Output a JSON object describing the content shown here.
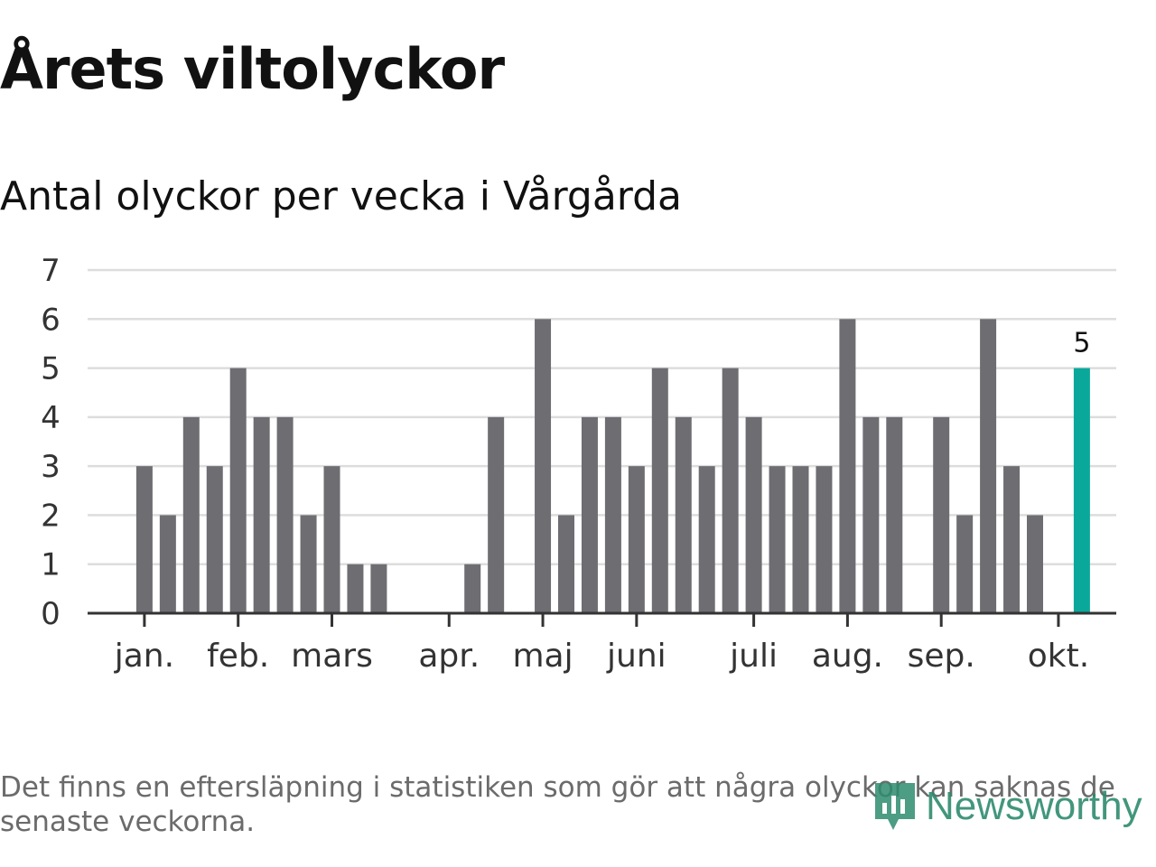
{
  "title": "Årets viltolyckor",
  "subtitle": "Antal olyckor per vecka i Vårgårda",
  "footnote": "Det finns en eftersläpning i statistiken som gör att några olyckor kan saknas de senaste veckorna.",
  "logo": {
    "text": "Newsworthy"
  },
  "colors": {
    "bar": "#6d6d72",
    "highlight": "#0aa89a",
    "grid": "#dddddd",
    "axis": "#333333"
  },
  "chart_data": {
    "type": "bar",
    "title": "Antal olyckor per vecka i Vårgårda",
    "xlabel": "",
    "ylabel": "",
    "ylim": [
      0,
      7
    ],
    "yticks": [
      "0",
      "1",
      "2",
      "3",
      "4",
      "5",
      "6",
      "7"
    ],
    "grid": true,
    "weeks": [
      1,
      2,
      3,
      4,
      5,
      6,
      7,
      8,
      9,
      10,
      11,
      12,
      13,
      14,
      15,
      16,
      17,
      18,
      19,
      20,
      21,
      22,
      23,
      24,
      25,
      26,
      27,
      28,
      29,
      30,
      31,
      32,
      33,
      34,
      35,
      36,
      37,
      38,
      39,
      40,
      41,
      42,
      43
    ],
    "values": [
      0,
      0,
      3,
      2,
      4,
      3,
      5,
      4,
      4,
      2,
      3,
      1,
      1,
      0,
      0,
      0,
      1,
      4,
      0,
      6,
      2,
      4,
      4,
      3,
      5,
      4,
      3,
      5,
      4,
      3,
      3,
      3,
      6,
      4,
      4,
      0,
      4,
      2,
      6,
      3,
      2,
      0,
      5
    ],
    "highlight_index": 42,
    "highlight_label": "5",
    "month_labels": [
      {
        "label": "jan.",
        "week": 3
      },
      {
        "label": "feb.",
        "week": 7
      },
      {
        "label": "mars",
        "week": 11
      },
      {
        "label": "apr.",
        "week": 16
      },
      {
        "label": "maj",
        "week": 20
      },
      {
        "label": "juni",
        "week": 24
      },
      {
        "label": "juli",
        "week": 29
      },
      {
        "label": "aug.",
        "week": 33
      },
      {
        "label": "sep.",
        "week": 37
      },
      {
        "label": "okt.",
        "week": 42
      }
    ]
  }
}
